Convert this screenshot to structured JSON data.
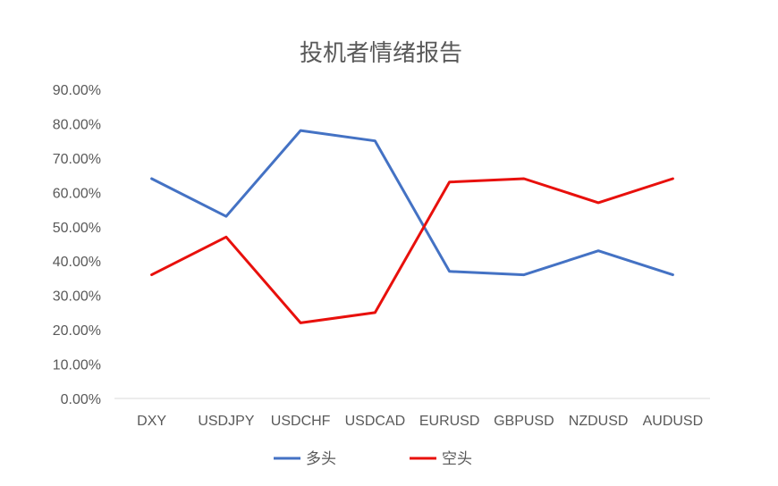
{
  "chart_data": {
    "type": "line",
    "title": "投机者情绪报告",
    "categories": [
      "DXY",
      "USDJPY",
      "USDCHF",
      "USDCAD",
      "EURUSD",
      "GBPUSD",
      "NZDUSD",
      "AUDUSD"
    ],
    "series": [
      {
        "name": "多头",
        "color": "#4472C4",
        "values": [
          64,
          53,
          78,
          75,
          37,
          36,
          43,
          36
        ]
      },
      {
        "name": "空头",
        "color": "#E8100C",
        "values": [
          36,
          47,
          22,
          25,
          63,
          64,
          57,
          64
        ]
      }
    ],
    "yticks": [
      "0.00%",
      "10.00%",
      "20.00%",
      "30.00%",
      "40.00%",
      "50.00%",
      "60.00%",
      "70.00%",
      "80.00%",
      "90.00%"
    ],
    "ylim": [
      0,
      90
    ],
    "y_unit": "%",
    "grid": false,
    "legend_position": "bottom"
  }
}
